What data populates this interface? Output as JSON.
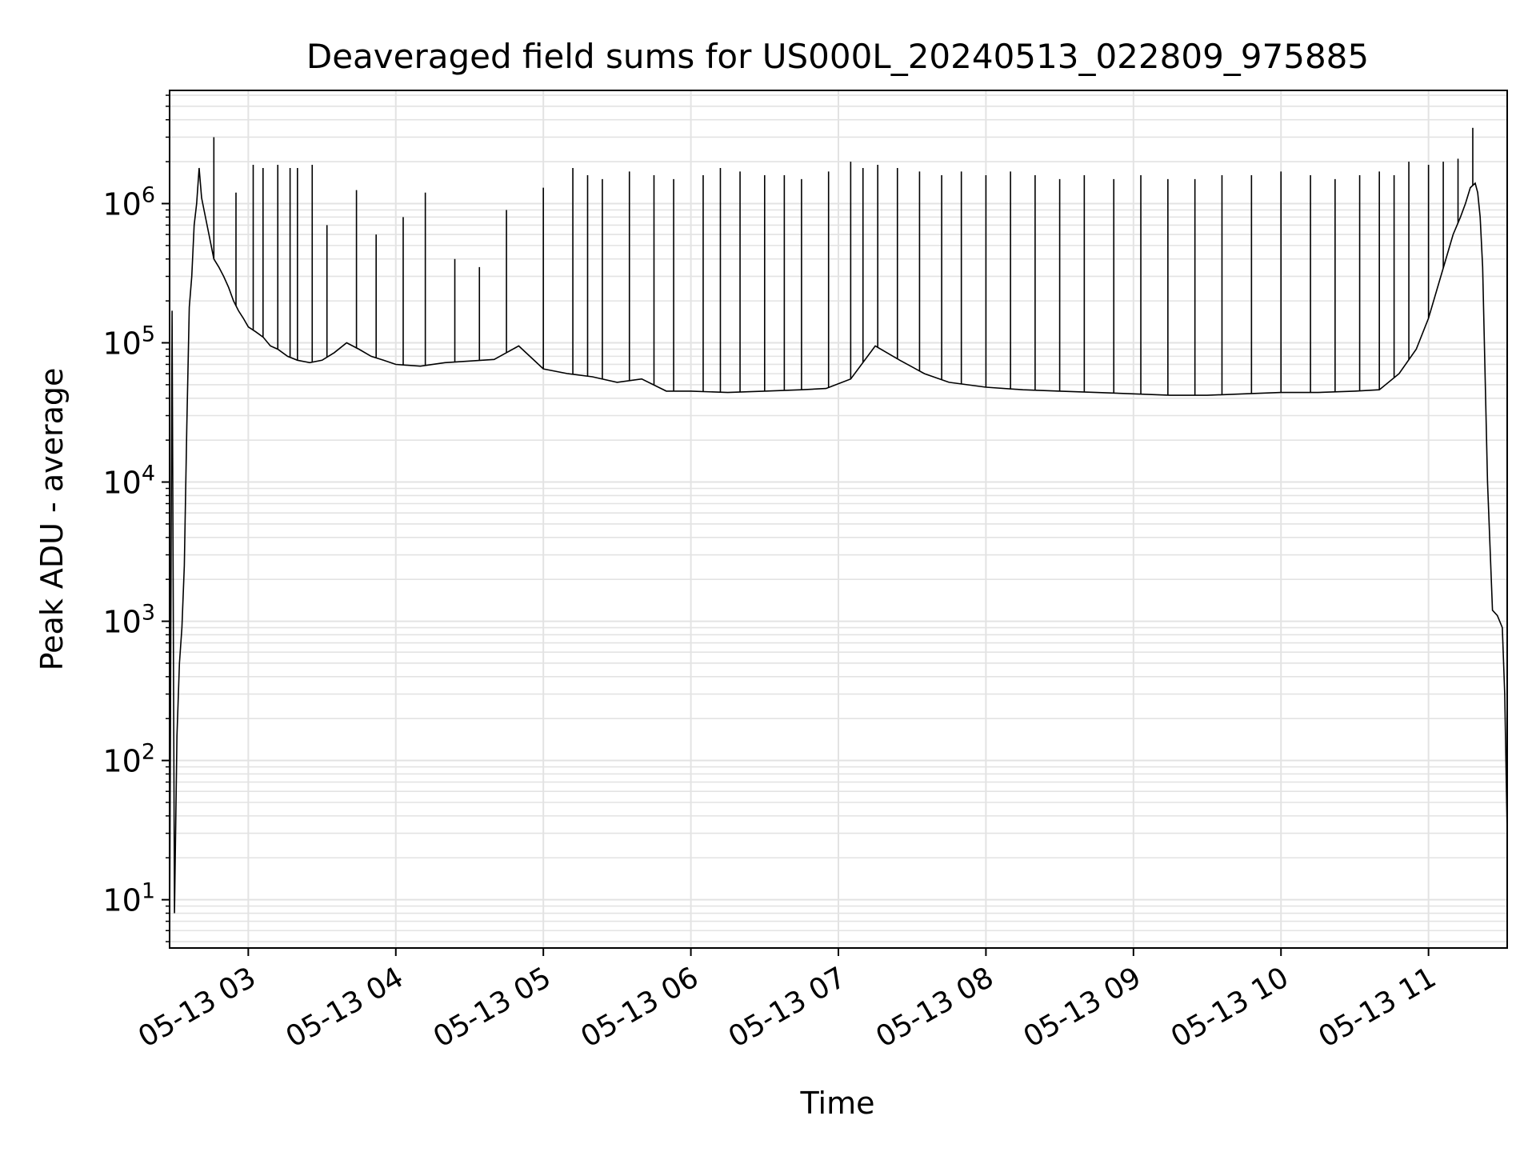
{
  "chart_data": {
    "type": "line",
    "title": "Deaveraged field sums for US000L_20240513_022809_975885",
    "xlabel": "Time",
    "ylabel": "Peak ADU - average",
    "y_scale": "log",
    "ylim": [
      4.5,
      6500000
    ],
    "xlim": [
      "05-13 02:28",
      "05-13 11:32"
    ],
    "grid": true,
    "line_color": "#000000",
    "x_ticks": [
      "05-13 03",
      "05-13 04",
      "05-13 05",
      "05-13 06",
      "05-13 07",
      "05-13 08",
      "05-13 09",
      "05-13 10",
      "05-13 11"
    ],
    "y_ticks": [
      {
        "base": "10",
        "exp": "1",
        "value": 10
      },
      {
        "base": "10",
        "exp": "2",
        "value": 100
      },
      {
        "base": "10",
        "exp": "3",
        "value": 1000
      },
      {
        "base": "10",
        "exp": "4",
        "value": 10000
      },
      {
        "base": "10",
        "exp": "5",
        "value": 100000
      },
      {
        "base": "10",
        "exp": "6",
        "value": 1000000
      }
    ],
    "series": [
      {
        "x": [
          "05-13 02:28",
          "05-13 02:29",
          "05-13 02:30",
          "05-13 02:31",
          "05-13 02:32",
          "05-13 02:33",
          "05-13 02:34",
          "05-13 02:35",
          "05-13 02:36",
          "05-13 02:37",
          "05-13 02:38",
          "05-13 02:39",
          "05-13 02:40",
          "05-13 02:41",
          "05-13 02:42",
          "05-13 02:44",
          "05-13 02:46",
          "05-13 02:48",
          "05-13 02:50",
          "05-13 02:52",
          "05-13 02:54",
          "05-13 02:56",
          "05-13 02:58",
          "05-13 03:00",
          "05-13 03:03",
          "05-13 03:06",
          "05-13 03:09",
          "05-13 03:12",
          "05-13 03:16",
          "05-13 03:20",
          "05-13 03:25",
          "05-13 03:30",
          "05-13 03:35",
          "05-13 03:40",
          "05-13 03:45",
          "05-13 03:50",
          "05-13 03:55",
          "05-13 04:00",
          "05-13 04:10",
          "05-13 04:20",
          "05-13 04:30",
          "05-13 04:40",
          "05-13 04:50",
          "05-13 05:00",
          "05-13 05:10",
          "05-13 05:20",
          "05-13 05:30",
          "05-13 05:40",
          "05-13 05:50",
          "05-13 06:00",
          "05-13 06:15",
          "05-13 06:30",
          "05-13 06:45",
          "05-13 06:55",
          "05-13 07:05",
          "05-13 07:15",
          "05-13 07:25",
          "05-13 07:35",
          "05-13 07:45",
          "05-13 08:00",
          "05-13 08:15",
          "05-13 08:30",
          "05-13 08:45",
          "05-13 09:00",
          "05-13 09:15",
          "05-13 09:30",
          "05-13 09:45",
          "05-13 10:00",
          "05-13 10:15",
          "05-13 10:30",
          "05-13 10:40",
          "05-13 10:48",
          "05-13 10:55",
          "05-13 11:00",
          "05-13 11:05",
          "05-13 11:10",
          "05-13 11:13",
          "05-13 11:15",
          "05-13 11:17",
          "05-13 11:19",
          "05-13 11:20",
          "05-13 11:21",
          "05-13 11:22",
          "05-13 11:24",
          "05-13 11:26",
          "05-13 11:28",
          "05-13 11:30",
          "05-13 11:31",
          "05-13 11:32"
        ],
        "y": [
          5,
          170000,
          8,
          150,
          500,
          900,
          2500,
          25000,
          180000,
          300000,
          700000,
          1000000,
          1800000,
          1100000,
          900000,
          600000,
          400000,
          350000,
          300000,
          250000,
          200000,
          170000,
          150000,
          130000,
          120000,
          110000,
          95000,
          90000,
          80000,
          75000,
          72000,
          75000,
          85000,
          100000,
          90000,
          80000,
          75000,
          70000,
          68000,
          72000,
          74000,
          76000,
          95000,
          65000,
          60000,
          57000,
          52000,
          55000,
          45000,
          45000,
          44000,
          45000,
          46000,
          47000,
          55000,
          95000,
          75000,
          60000,
          52000,
          48000,
          46000,
          45000,
          44000,
          43000,
          42000,
          42000,
          43000,
          44000,
          44000,
          45000,
          46000,
          60000,
          90000,
          150000,
          300000,
          600000,
          800000,
          1000000,
          1300000,
          1400000,
          1200000,
          800000,
          350000,
          10000,
          1200,
          1100,
          900,
          300,
          30
        ]
      }
    ],
    "spikes": [
      {
        "x": "05-13 02:46",
        "y": 3000000
      },
      {
        "x": "05-13 02:55",
        "y": 1200000
      },
      {
        "x": "05-13 03:02",
        "y": 1900000
      },
      {
        "x": "05-13 03:06",
        "y": 1800000
      },
      {
        "x": "05-13 03:12",
        "y": 1900000
      },
      {
        "x": "05-13 03:17",
        "y": 1800000
      },
      {
        "x": "05-13 03:20",
        "y": 1800000
      },
      {
        "x": "05-13 03:26",
        "y": 1900000
      },
      {
        "x": "05-13 03:32",
        "y": 700000
      },
      {
        "x": "05-13 03:44",
        "y": 1250000
      },
      {
        "x": "05-13 03:52",
        "y": 600000
      },
      {
        "x": "05-13 04:03",
        "y": 800000
      },
      {
        "x": "05-13 04:12",
        "y": 1200000
      },
      {
        "x": "05-13 04:24",
        "y": 400000
      },
      {
        "x": "05-13 04:34",
        "y": 350000
      },
      {
        "x": "05-13 04:45",
        "y": 900000
      },
      {
        "x": "05-13 05:00",
        "y": 1300000
      },
      {
        "x": "05-13 05:12",
        "y": 1800000
      },
      {
        "x": "05-13 05:18",
        "y": 1600000
      },
      {
        "x": "05-13 05:24",
        "y": 1500000
      },
      {
        "x": "05-13 05:35",
        "y": 1700000
      },
      {
        "x": "05-13 05:45",
        "y": 1600000
      },
      {
        "x": "05-13 05:53",
        "y": 1500000
      },
      {
        "x": "05-13 06:05",
        "y": 1600000
      },
      {
        "x": "05-13 06:12",
        "y": 1800000
      },
      {
        "x": "05-13 06:20",
        "y": 1700000
      },
      {
        "x": "05-13 06:30",
        "y": 1600000
      },
      {
        "x": "05-13 06:38",
        "y": 1600000
      },
      {
        "x": "05-13 06:45",
        "y": 1500000
      },
      {
        "x": "05-13 06:56",
        "y": 1700000
      },
      {
        "x": "05-13 07:05",
        "y": 2000000
      },
      {
        "x": "05-13 07:10",
        "y": 1800000
      },
      {
        "x": "05-13 07:16",
        "y": 1900000
      },
      {
        "x": "05-13 07:24",
        "y": 1800000
      },
      {
        "x": "05-13 07:33",
        "y": 1700000
      },
      {
        "x": "05-13 07:42",
        "y": 1600000
      },
      {
        "x": "05-13 07:50",
        "y": 1700000
      },
      {
        "x": "05-13 08:00",
        "y": 1600000
      },
      {
        "x": "05-13 08:10",
        "y": 1700000
      },
      {
        "x": "05-13 08:20",
        "y": 1600000
      },
      {
        "x": "05-13 08:30",
        "y": 1500000
      },
      {
        "x": "05-13 08:40",
        "y": 1600000
      },
      {
        "x": "05-13 08:52",
        "y": 1500000
      },
      {
        "x": "05-13 09:03",
        "y": 1600000
      },
      {
        "x": "05-13 09:14",
        "y": 1500000
      },
      {
        "x": "05-13 09:25",
        "y": 1500000
      },
      {
        "x": "05-13 09:36",
        "y": 1600000
      },
      {
        "x": "05-13 09:48",
        "y": 1600000
      },
      {
        "x": "05-13 10:00",
        "y": 1700000
      },
      {
        "x": "05-13 10:12",
        "y": 1600000
      },
      {
        "x": "05-13 10:22",
        "y": 1500000
      },
      {
        "x": "05-13 10:32",
        "y": 1600000
      },
      {
        "x": "05-13 10:40",
        "y": 1700000
      },
      {
        "x": "05-13 10:46",
        "y": 1600000
      },
      {
        "x": "05-13 10:52",
        "y": 2000000
      },
      {
        "x": "05-13 11:00",
        "y": 1900000
      },
      {
        "x": "05-13 11:06",
        "y": 2000000
      },
      {
        "x": "05-13 11:12",
        "y": 2100000
      },
      {
        "x": "05-13 11:18",
        "y": 3500000
      }
    ]
  }
}
